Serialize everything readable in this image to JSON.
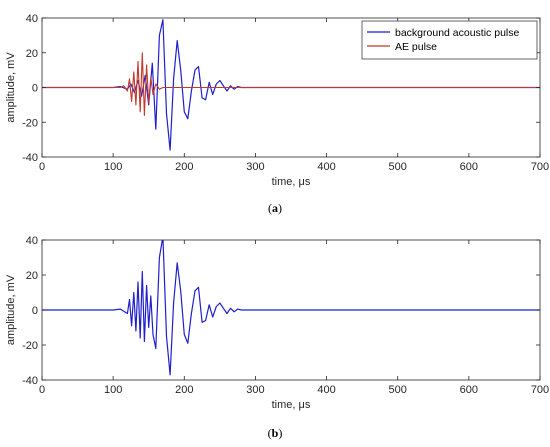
{
  "chart_data": [
    {
      "type": "line",
      "caption": "(a)",
      "xlabel": "time, μs",
      "ylabel": "amplitude, mV",
      "xlim": [
        0,
        700
      ],
      "ylim": [
        -40,
        40
      ],
      "xticks": [
        0,
        100,
        200,
        300,
        400,
        500,
        600,
        700
      ],
      "yticks": [
        -40,
        -20,
        0,
        20,
        40
      ],
      "grid": false,
      "legend": "top-right",
      "series": [
        {
          "name": "background acoustic pulse",
          "color": "#1f1fcc",
          "x": [
            0,
            100,
            110,
            120,
            125,
            130,
            135,
            140,
            145,
            150,
            155,
            160,
            165,
            170,
            175,
            180,
            185,
            190,
            195,
            200,
            205,
            210,
            215,
            220,
            225,
            230,
            235,
            240,
            245,
            250,
            255,
            260,
            265,
            270,
            275,
            280,
            300,
            400,
            500,
            600,
            700
          ],
          "y": [
            0,
            0,
            0.5,
            -1,
            2,
            -3,
            4,
            -5,
            7,
            -10,
            14,
            -24,
            30,
            39,
            -15,
            -36,
            5,
            27,
            10,
            -14,
            -18,
            -2,
            10,
            12,
            -6,
            -7,
            3,
            -4,
            2,
            4,
            1,
            -2,
            1,
            -1,
            0.5,
            0,
            0,
            0,
            0,
            0,
            0
          ]
        },
        {
          "name": "AE pulse",
          "color": "#c0392b",
          "x": [
            0,
            110,
            115,
            120,
            123,
            126,
            129,
            132,
            135,
            138,
            141,
            144,
            147,
            150,
            153,
            156,
            160,
            165,
            170,
            180,
            200,
            700
          ],
          "y": [
            0,
            0,
            1,
            -2,
            5,
            -8,
            9,
            -10,
            15,
            -14,
            20,
            -16,
            13,
            -9,
            6,
            -4,
            2,
            -1,
            0,
            0,
            0,
            0
          ]
        }
      ]
    },
    {
      "type": "line",
      "caption": "(b)",
      "xlabel": "time, μs",
      "ylabel": "amplitude, mV",
      "xlim": [
        0,
        700
      ],
      "ylim": [
        -40,
        40
      ],
      "xticks": [
        0,
        100,
        200,
        300,
        400,
        500,
        600,
        700
      ],
      "yticks": [
        -40,
        -20,
        0,
        20,
        40
      ],
      "grid": false,
      "series": [
        {
          "color": "#1f1fcc",
          "x": [
            0,
            100,
            110,
            120,
            123,
            126,
            129,
            132,
            135,
            138,
            141,
            144,
            147,
            150,
            153,
            156,
            160,
            165,
            170,
            175,
            180,
            185,
            190,
            195,
            200,
            205,
            210,
            215,
            220,
            225,
            230,
            235,
            240,
            245,
            250,
            255,
            260,
            265,
            270,
            275,
            280,
            300,
            400,
            500,
            600,
            700
          ],
          "y": [
            0,
            0,
            0.5,
            -2,
            6,
            -9,
            10,
            -12,
            16,
            -16,
            22,
            -18,
            14,
            -10,
            8,
            -14,
            -22,
            30,
            42,
            -15,
            -37,
            4,
            27,
            11,
            -14,
            -19,
            -2,
            11,
            13,
            -7,
            -6,
            3,
            -4,
            2,
            4,
            1,
            -2,
            1,
            -1,
            0.5,
            0,
            0,
            0,
            0,
            0,
            0
          ]
        }
      ]
    }
  ]
}
